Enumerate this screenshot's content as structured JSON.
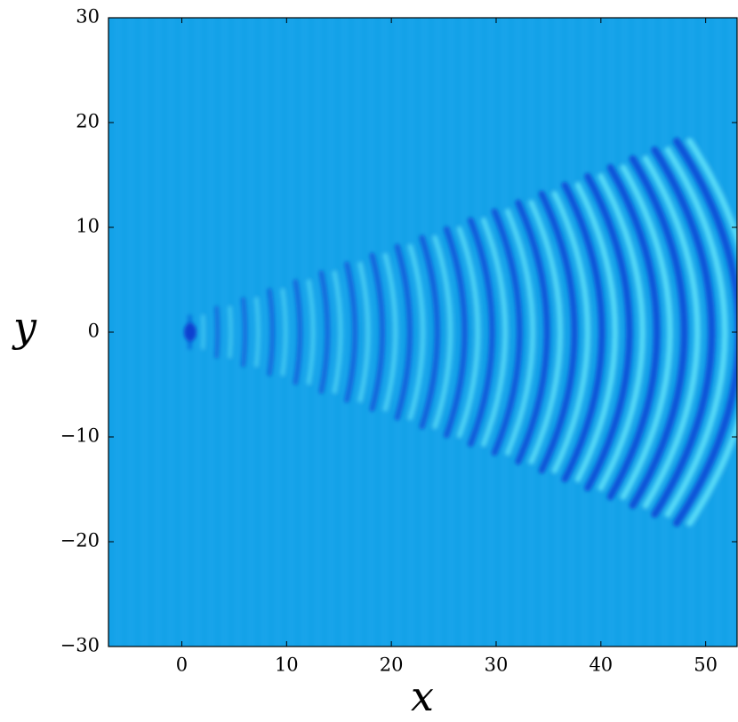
{
  "chart_data": {
    "type": "heatmap",
    "xlabel": "x",
    "ylabel": "y",
    "xlim": [
      -7,
      53
    ],
    "ylim": [
      -30,
      30
    ],
    "xticks": [
      0,
      10,
      20,
      30,
      40,
      50
    ],
    "yticks": [
      {
        "value": -30,
        "label": "−30"
      },
      {
        "value": -20,
        "label": "−20"
      },
      {
        "value": -10,
        "label": "−10"
      },
      0,
      10,
      20,
      30
    ],
    "color": "#18a4ea"
  }
}
